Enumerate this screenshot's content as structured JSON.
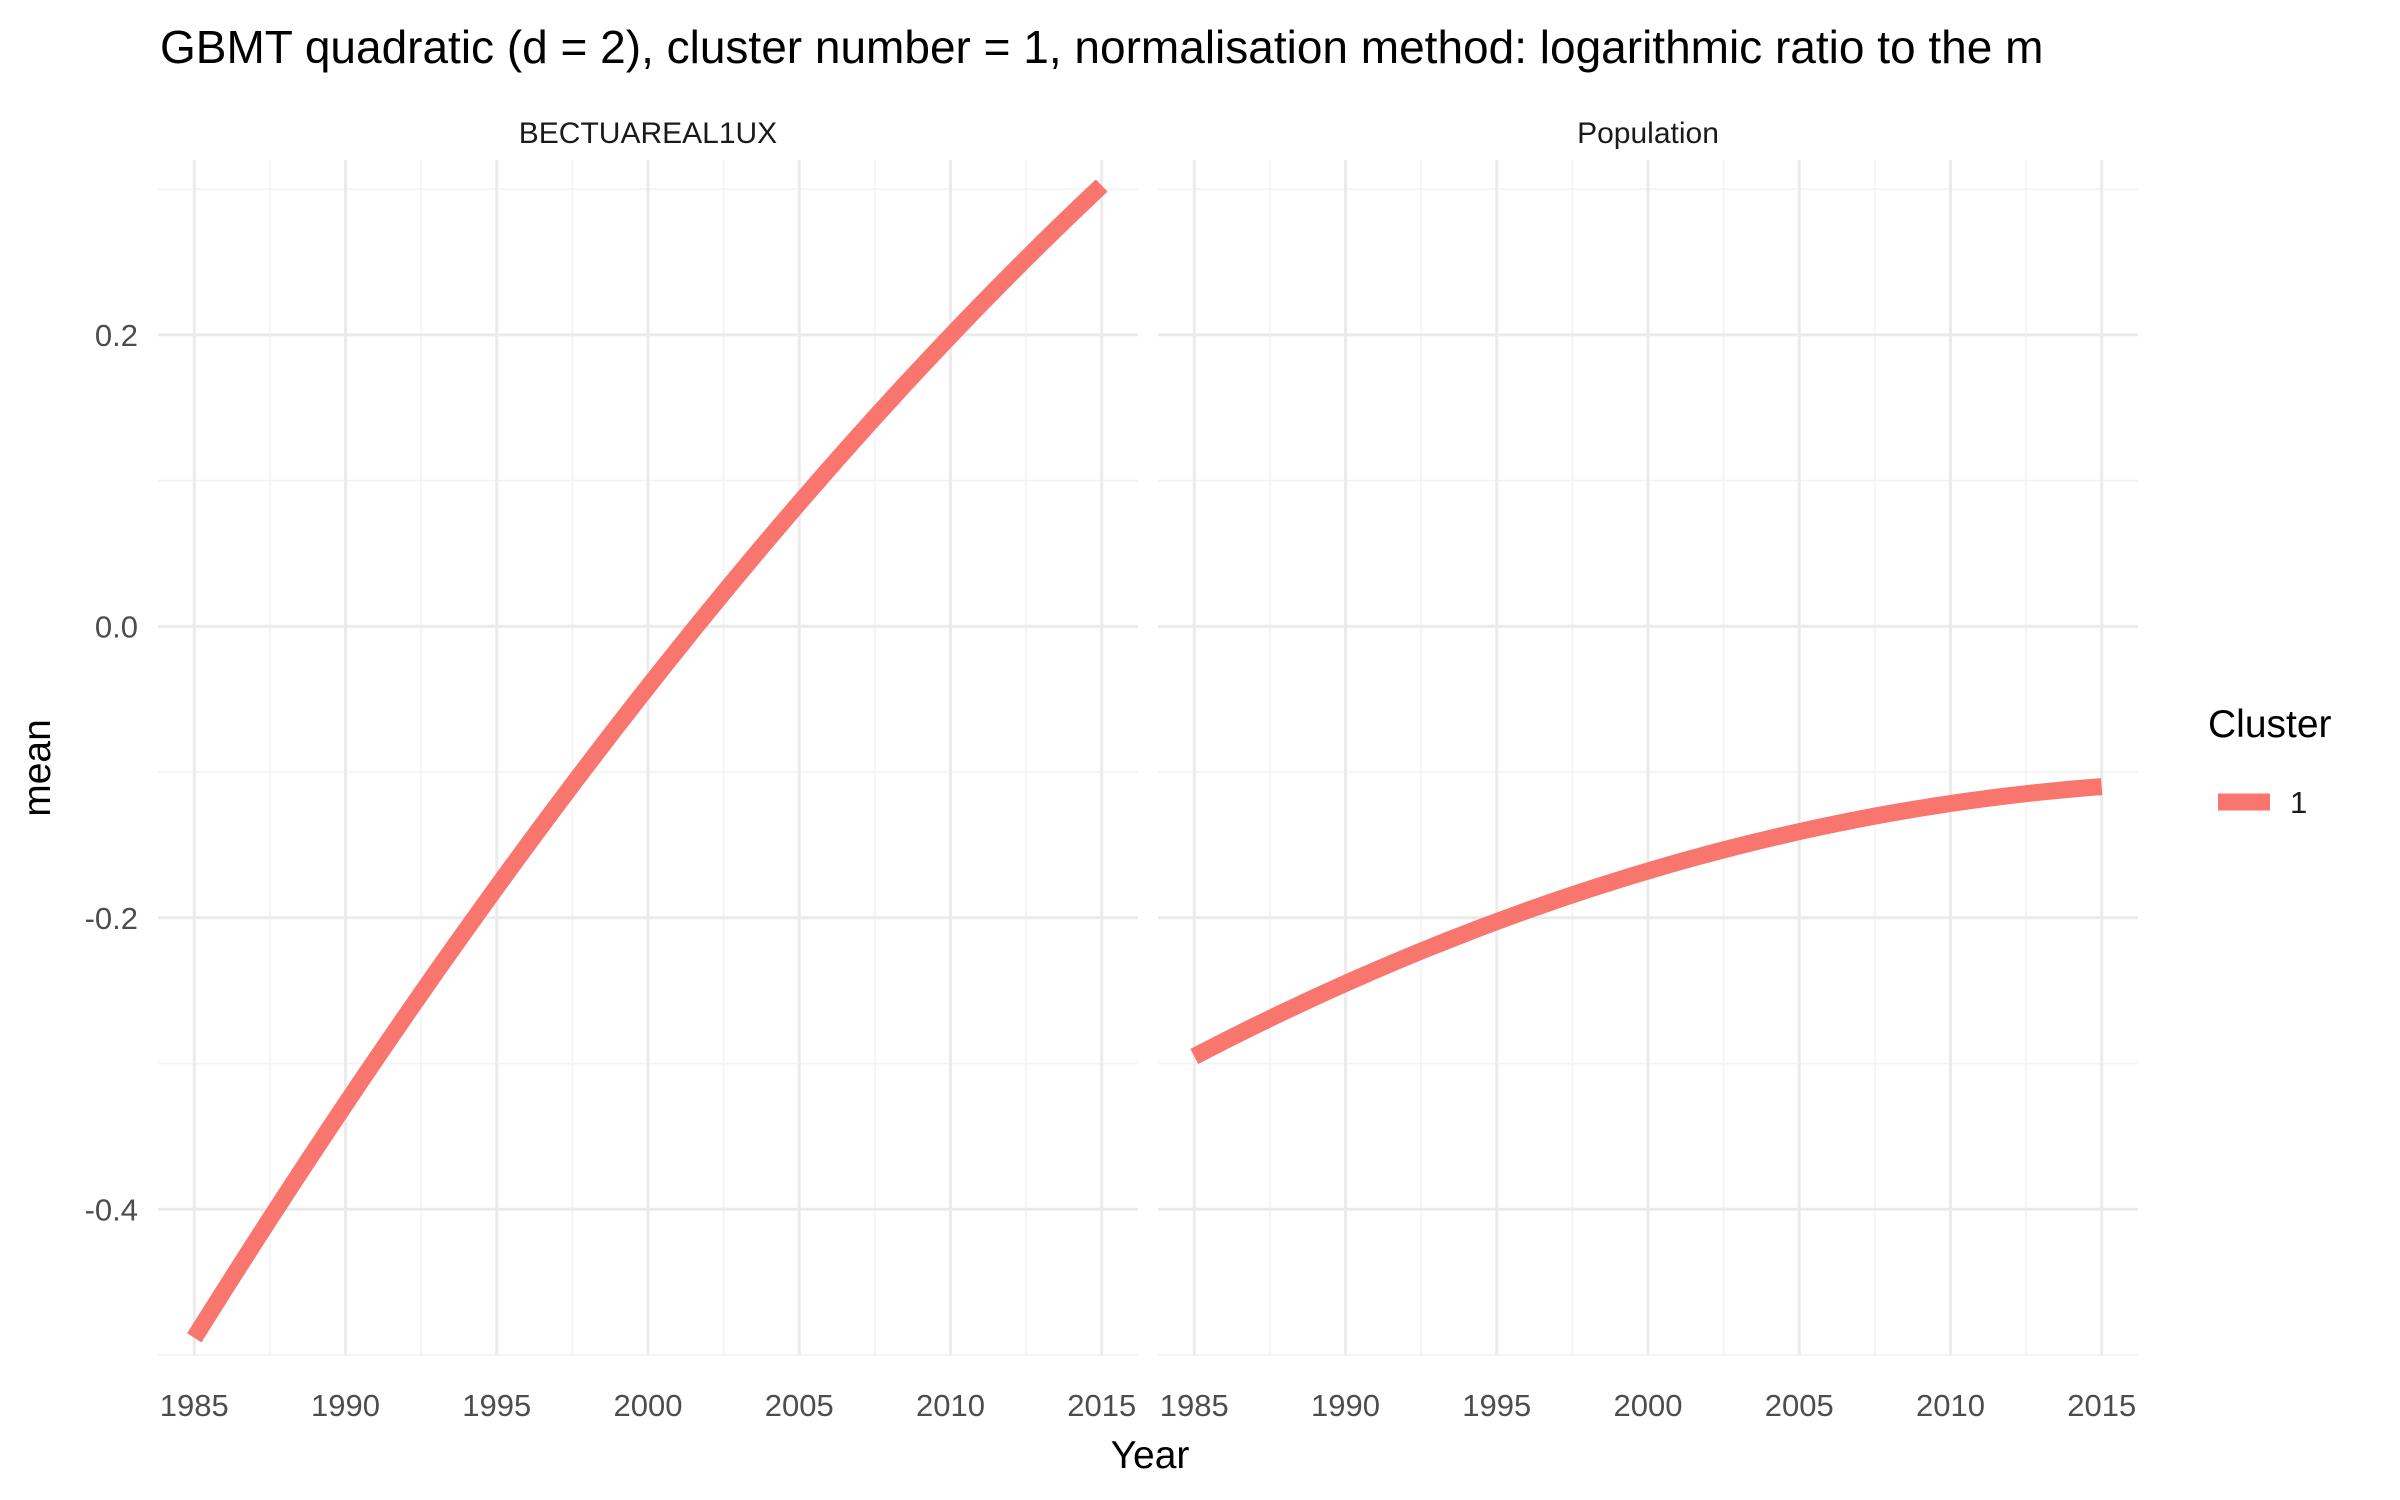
{
  "chart_data": {
    "type": "line",
    "title": "GBMT quadratic (d = 2), cluster number = 1, normalisation method: logarithmic ratio to the m",
    "xlabel": "Year",
    "ylabel": "mean",
    "xlim": [
      1983.8,
      2016.2
    ],
    "ylim": [
      -0.5,
      0.32
    ],
    "x_ticks": [
      1985,
      1990,
      1995,
      2000,
      2005,
      2010,
      2015
    ],
    "y_ticks": [
      -0.4,
      -0.2,
      0.0,
      0.2
    ],
    "y_tick_labels": [
      "-0.4",
      "-0.2",
      "0.0",
      "0.2"
    ],
    "x_tick_labels": [
      "1985",
      "1990",
      "1995",
      "2000",
      "2005",
      "2010",
      "2015"
    ],
    "grid": true,
    "legend": {
      "title": "Cluster",
      "placement": "right",
      "entries": [
        "1"
      ]
    },
    "colors": {
      "cluster_1": "#F8766D"
    },
    "facets": [
      {
        "strip": "BECTUAREAL1UX",
        "series": [
          {
            "name": "1",
            "x": [
              1985,
              1990,
              1995,
              2000,
              2005,
              2010,
              2015
            ],
            "y": [
              -0.485,
              -0.33,
              -0.185,
              -0.04,
              0.09,
              0.2,
              0.3
            ]
          }
        ]
      },
      {
        "strip": "Population",
        "series": [
          {
            "name": "1",
            "x": [
              1985,
              1990,
              1995,
              2000,
              2005,
              2010,
              2015
            ],
            "y": [
              -0.295,
              -0.245,
              -0.203,
              -0.168,
              -0.14,
              -0.122,
              -0.11
            ]
          }
        ]
      }
    ]
  }
}
